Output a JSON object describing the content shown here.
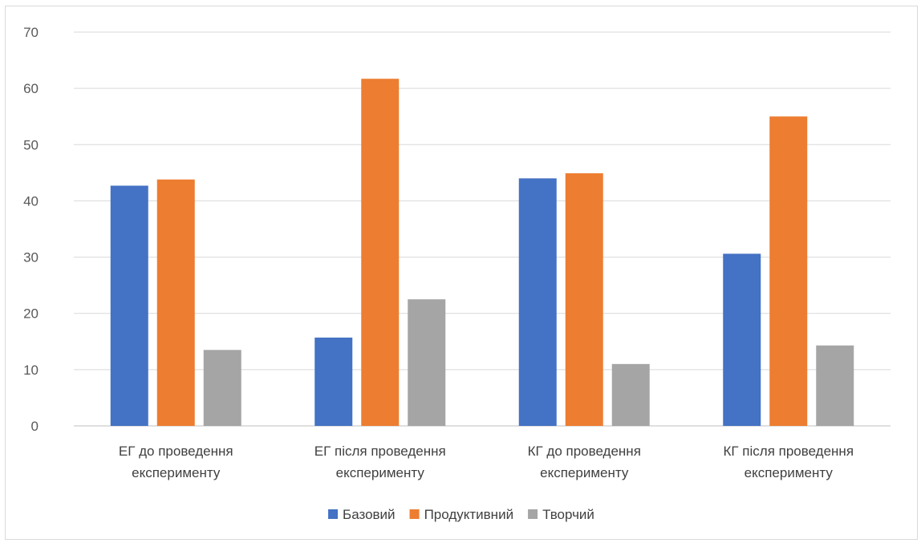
{
  "chart_data": {
    "type": "bar",
    "categories": [
      [
        "ЕГ до проведення",
        "експерименту"
      ],
      [
        "ЕГ після проведення",
        "експерименту"
      ],
      [
        "КГ до проведення",
        "експерименту"
      ],
      [
        "КГ після проведення",
        "експерименту"
      ]
    ],
    "series": [
      {
        "name": "Базовий",
        "color": "#4472c4",
        "values": [
          42.7,
          15.7,
          44.0,
          30.6
        ]
      },
      {
        "name": "Продуктивний",
        "color": "#ed7d31",
        "values": [
          43.8,
          61.7,
          44.9,
          55.0
        ]
      },
      {
        "name": "Творчий",
        "color": "#a5a5a5",
        "values": [
          13.5,
          22.5,
          11.0,
          14.3
        ]
      }
    ],
    "ylim": [
      0,
      70
    ],
    "yticks": [
      0,
      10,
      20,
      30,
      40,
      50,
      60,
      70
    ],
    "grid": true,
    "legend_position": "bottom"
  }
}
